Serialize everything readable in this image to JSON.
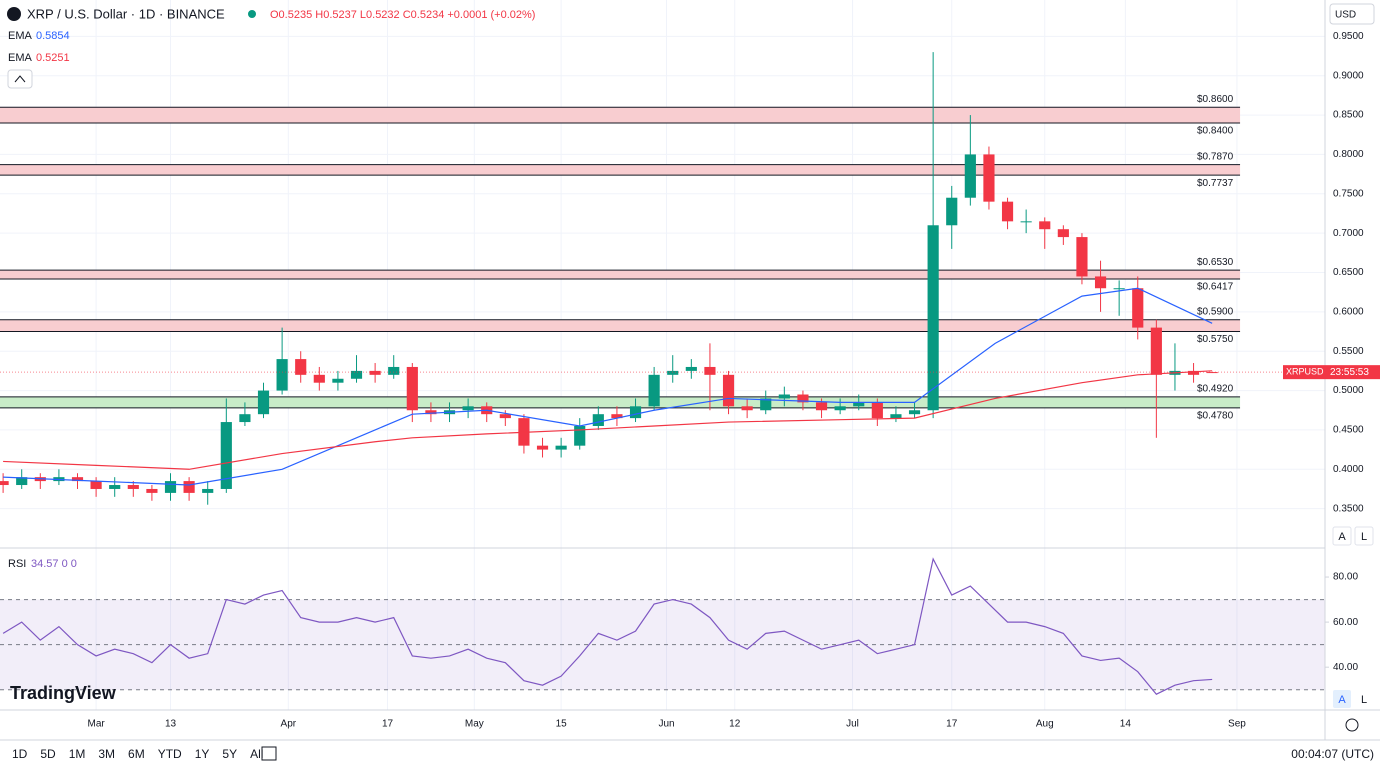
{
  "header": {
    "symbol": "XRP / U.S. Dollar · 1D · BINANCE",
    "ohlc": "O0.5235 H0.5237 L0.5232 C0.5234 +0.0001 (+0.02%)",
    "currency": "USD",
    "tag": "XRPUSD",
    "countdown": "23:55:53",
    "logo": "TradingView",
    "clock": "00:04:07 (UTC)",
    "ranges": [
      "1D",
      "5D",
      "1M",
      "3M",
      "6M",
      "YTD",
      "1Y",
      "5Y",
      "All"
    ],
    "buttons": [
      "A",
      "L"
    ]
  },
  "chart_data": [
    {
      "type": "candlestick",
      "xlim": [
        -0.5,
        213.2
      ],
      "ylim": [
        0.3,
        1.0
      ],
      "yticks": [
        {
          "value": 0.35,
          "label": "0.3500"
        },
        {
          "value": 0.4,
          "label": "0.4000"
        },
        {
          "value": 0.45,
          "label": "0.4500"
        },
        {
          "value": 0.5,
          "label": "0.5000"
        },
        {
          "value": 0.55,
          "label": "0.5500"
        },
        {
          "value": 0.6,
          "label": "0.6000"
        },
        {
          "value": 0.65,
          "label": "0.6500"
        },
        {
          "value": 0.7,
          "label": "0.7000"
        },
        {
          "value": 0.75,
          "label": "0.7500"
        },
        {
          "value": 0.8,
          "label": "0.8000"
        },
        {
          "value": 0.85,
          "label": "0.8500"
        },
        {
          "value": 0.9,
          "label": "0.9000"
        },
        {
          "value": 0.95,
          "label": "0.9500"
        }
      ],
      "xticks": [
        {
          "value": 15,
          "label": "Mar"
        },
        {
          "value": 27,
          "label": "13"
        },
        {
          "value": 46,
          "label": "Apr"
        },
        {
          "value": 62,
          "label": "17"
        },
        {
          "value": 76,
          "label": "May"
        },
        {
          "value": 90,
          "label": "15"
        },
        {
          "value": 107,
          "label": "Jun"
        },
        {
          "value": 118,
          "label": "12"
        },
        {
          "value": 137,
          "label": "Jul"
        },
        {
          "value": 153,
          "label": "17"
        },
        {
          "value": 168,
          "label": "Aug"
        },
        {
          "value": 181,
          "label": "14"
        },
        {
          "value": 199,
          "label": "Sep"
        }
      ],
      "grid": true,
      "up_color": "#089981",
      "down_color": "#f23645",
      "x": [
        0,
        3,
        6,
        9,
        12,
        15,
        18,
        21,
        24,
        27,
        30,
        33,
        36,
        39,
        42,
        45,
        48,
        51,
        54,
        57,
        60,
        63,
        66,
        69,
        72,
        75,
        78,
        81,
        84,
        87,
        90,
        93,
        96,
        99,
        102,
        105,
        108,
        111,
        114,
        117,
        120,
        123,
        126,
        129,
        132,
        135,
        138,
        141,
        144,
        147,
        150,
        153,
        156,
        159,
        162,
        165,
        168,
        171,
        174,
        177,
        180,
        183,
        186,
        189,
        192,
        195
      ],
      "open": [
        0.385,
        0.38,
        0.39,
        0.385,
        0.39,
        0.385,
        0.375,
        0.38,
        0.375,
        0.37,
        0.385,
        0.37,
        0.375,
        0.46,
        0.47,
        0.5,
        0.54,
        0.52,
        0.51,
        0.515,
        0.525,
        0.52,
        0.53,
        0.475,
        0.47,
        0.475,
        0.48,
        0.47,
        0.465,
        0.43,
        0.425,
        0.43,
        0.455,
        0.47,
        0.465,
        0.48,
        0.52,
        0.525,
        0.53,
        0.52,
        0.48,
        0.475,
        0.49,
        0.495,
        0.485,
        0.475,
        0.48,
        0.485,
        0.465,
        0.47,
        0.475,
        0.71,
        0.745,
        0.8,
        0.74,
        0.715,
        0.715,
        0.705,
        0.695,
        0.645,
        0.63,
        0.63,
        0.58,
        0.52,
        0.525,
        0.5235
      ],
      "high": [
        0.395,
        0.4,
        0.395,
        0.4,
        0.395,
        0.39,
        0.39,
        0.385,
        0.38,
        0.395,
        0.39,
        0.385,
        0.49,
        0.485,
        0.51,
        0.58,
        0.55,
        0.53,
        0.525,
        0.545,
        0.535,
        0.545,
        0.535,
        0.485,
        0.485,
        0.49,
        0.485,
        0.475,
        0.47,
        0.44,
        0.44,
        0.465,
        0.48,
        0.48,
        0.49,
        0.53,
        0.545,
        0.54,
        0.56,
        0.525,
        0.49,
        0.5,
        0.505,
        0.5,
        0.49,
        0.49,
        0.495,
        0.49,
        0.48,
        0.485,
        0.93,
        0.76,
        0.85,
        0.81,
        0.745,
        0.73,
        0.72,
        0.71,
        0.7,
        0.665,
        0.64,
        0.645,
        0.59,
        0.56,
        0.535,
        0.5237
      ],
      "low": [
        0.37,
        0.375,
        0.375,
        0.38,
        0.375,
        0.365,
        0.365,
        0.365,
        0.36,
        0.36,
        0.36,
        0.355,
        0.37,
        0.455,
        0.465,
        0.495,
        0.51,
        0.5,
        0.5,
        0.51,
        0.51,
        0.515,
        0.46,
        0.46,
        0.46,
        0.465,
        0.46,
        0.455,
        0.42,
        0.415,
        0.415,
        0.425,
        0.45,
        0.455,
        0.46,
        0.475,
        0.51,
        0.515,
        0.475,
        0.47,
        0.465,
        0.47,
        0.48,
        0.475,
        0.465,
        0.47,
        0.475,
        0.455,
        0.46,
        0.465,
        0.465,
        0.68,
        0.735,
        0.73,
        0.705,
        0.7,
        0.68,
        0.685,
        0.635,
        0.6,
        0.595,
        0.565,
        0.44,
        0.5,
        0.51,
        0.5232
      ],
      "close": [
        0.38,
        0.39,
        0.385,
        0.39,
        0.385,
        0.375,
        0.38,
        0.375,
        0.37,
        0.385,
        0.37,
        0.375,
        0.46,
        0.47,
        0.5,
        0.54,
        0.52,
        0.51,
        0.515,
        0.525,
        0.52,
        0.53,
        0.475,
        0.47,
        0.475,
        0.48,
        0.47,
        0.465,
        0.43,
        0.425,
        0.43,
        0.455,
        0.47,
        0.465,
        0.48,
        0.52,
        0.525,
        0.53,
        0.52,
        0.48,
        0.475,
        0.49,
        0.495,
        0.485,
        0.475,
        0.48,
        0.485,
        0.465,
        0.47,
        0.475,
        0.71,
        0.745,
        0.8,
        0.74,
        0.715,
        0.715,
        0.705,
        0.695,
        0.645,
        0.63,
        0.63,
        0.58,
        0.52,
        0.525,
        0.52,
        0.5234
      ],
      "series": [
        {
          "name": "EMA",
          "label": "0.5854",
          "color": "#2962ff",
          "x": [
            0,
            15,
            30,
            45,
            60,
            66,
            78,
            93,
            105,
            117,
            135,
            147,
            160,
            174,
            183,
            195
          ],
          "values": [
            0.39,
            0.385,
            0.38,
            0.4,
            0.45,
            0.47,
            0.475,
            0.455,
            0.475,
            0.49,
            0.485,
            0.485,
            0.56,
            0.62,
            0.63,
            0.5854
          ]
        },
        {
          "name": "EMA",
          "label": "0.5251",
          "color": "#f23645",
          "x": [
            0,
            15,
            30,
            45,
            60,
            66,
            78,
            93,
            105,
            117,
            135,
            147,
            160,
            174,
            183,
            195
          ],
          "values": [
            0.41,
            0.405,
            0.4,
            0.42,
            0.435,
            0.44,
            0.445,
            0.45,
            0.455,
            0.46,
            0.463,
            0.465,
            0.49,
            0.51,
            0.52,
            0.5251
          ]
        }
      ],
      "zones": [
        {
          "top": 0.86,
          "bottom": 0.84,
          "top_label": "$0.8600",
          "bottom_label": "$0.8400",
          "color": "#f8cdd0"
        },
        {
          "top": 0.787,
          "bottom": 0.7737,
          "top_label": "$0.7870",
          "bottom_label": "$0.7737",
          "color": "#f8cdd0"
        },
        {
          "top": 0.653,
          "bottom": 0.6417,
          "top_label": "$0.6530",
          "bottom_label": "$0.6417",
          "color": "#f8cdd0"
        },
        {
          "top": 0.59,
          "bottom": 0.575,
          "top_label": "$0.5900",
          "bottom_label": "$0.5750",
          "color": "#f8cdd0"
        },
        {
          "top": 0.492,
          "bottom": 0.478,
          "top_label": "$0.4920",
          "bottom_label": "$0.4780",
          "color": "#c8ecc8"
        }
      ]
    },
    {
      "type": "line",
      "title": "RSI",
      "label": "34.57 0 0",
      "xlim": [
        -0.5,
        213.2
      ],
      "ylim": [
        21,
        92
      ],
      "yticks": [
        {
          "value": 40,
          "label": "40.00"
        },
        {
          "value": 60,
          "label": "60.00"
        },
        {
          "value": 80,
          "label": "80.00"
        }
      ],
      "band": [
        30,
        70
      ],
      "levels": [
        30,
        50,
        70
      ],
      "band_color": "#7e57c2",
      "series": [
        {
          "name": "RSI",
          "color": "#7e57c2",
          "x": [
            0,
            3,
            6,
            9,
            12,
            15,
            18,
            21,
            24,
            27,
            30,
            33,
            36,
            39,
            42,
            45,
            48,
            51,
            54,
            57,
            60,
            63,
            66,
            69,
            72,
            75,
            78,
            81,
            84,
            87,
            90,
            93,
            96,
            99,
            102,
            105,
            108,
            111,
            114,
            117,
            120,
            123,
            126,
            129,
            132,
            135,
            138,
            141,
            144,
            147,
            150,
            153,
            156,
            159,
            162,
            165,
            168,
            171,
            174,
            177,
            180,
            183,
            186,
            189,
            192,
            195
          ],
          "values": [
            55,
            60,
            52,
            58,
            50,
            45,
            48,
            46,
            42,
            50,
            44,
            46,
            70,
            68,
            72,
            74,
            62,
            60,
            60,
            62,
            60,
            62,
            45,
            44,
            45,
            48,
            44,
            42,
            34,
            32,
            36,
            45,
            55,
            52,
            56,
            68,
            70,
            68,
            62,
            52,
            48,
            55,
            56,
            52,
            48,
            50,
            52,
            46,
            48,
            50,
            88,
            72,
            76,
            68,
            60,
            60,
            58,
            55,
            45,
            43,
            44,
            38,
            28,
            32,
            34,
            34.57
          ]
        }
      ]
    }
  ]
}
